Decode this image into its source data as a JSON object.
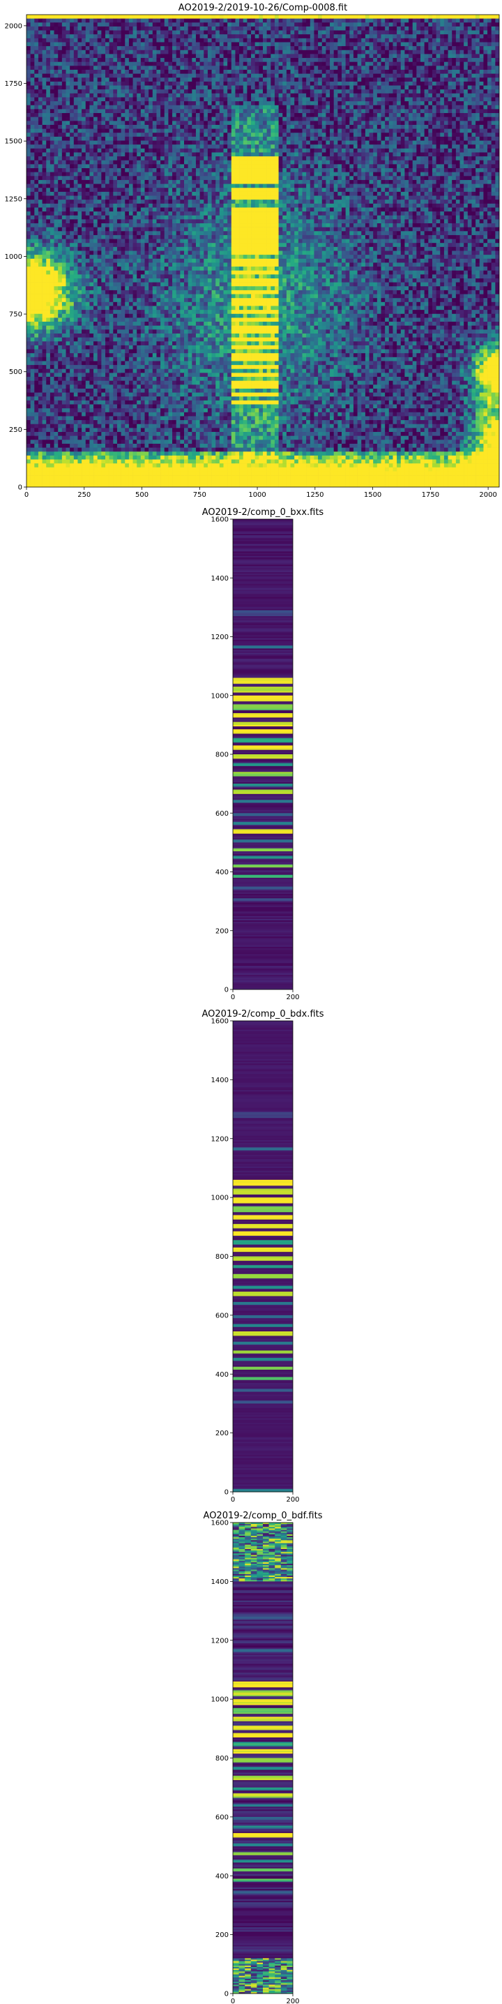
{
  "colors": {
    "viridis_low": "#440154",
    "viridis_dark_blue": "#3b528b",
    "viridis_teal": "#21918c",
    "viridis_green": "#5ec962",
    "viridis_high": "#fde725"
  },
  "chart_data": [
    {
      "type": "heatmap",
      "colormap": "viridis",
      "title": "AO2019-2/2019-10-26/Comp-0008.fit",
      "xlim": [
        0,
        2048
      ],
      "ylim": [
        0,
        2048
      ],
      "xticks": [
        0,
        250,
        500,
        750,
        1000,
        1250,
        1500,
        1750,
        2000
      ],
      "yticks": [
        0,
        250,
        500,
        750,
        1000,
        1250,
        1500,
        1750,
        2000
      ],
      "background_level": 0.18,
      "noise": 0.5,
      "features": [
        {
          "kind": "blob",
          "x": 0,
          "y": 850,
          "rx": 200,
          "ry": 170,
          "amp": 1.5
        },
        {
          "kind": "blob",
          "x": 2048,
          "y": 500,
          "rx": 110,
          "ry": 120,
          "amp": 1.3
        },
        {
          "kind": "blob",
          "x": 2048,
          "y": 160,
          "rx": 120,
          "ry": 220,
          "amp": 1.2
        },
        {
          "kind": "halo",
          "x": 1000,
          "y": 800,
          "rx": 520,
          "ry": 650,
          "amp": 0.35
        },
        {
          "kind": "bottom_glow",
          "y_top": 160,
          "amp": 1.4
        },
        {
          "kind": "top_edge",
          "y": 2035,
          "amp": 1.0
        }
      ],
      "spectrum_column": {
        "x_range": [
          880,
          1100
        ],
        "bright_bands": [
          [
            1320,
            1440
          ],
          [
            1240,
            1290
          ],
          [
            1000,
            1210
          ],
          [
            960,
            985
          ],
          [
            920,
            945
          ],
          [
            870,
            900
          ],
          [
            830,
            855
          ],
          [
            790,
            815
          ],
          [
            750,
            775
          ],
          [
            710,
            735
          ],
          [
            670,
            695
          ],
          [
            630,
            655
          ],
          [
            590,
            615
          ],
          [
            550,
            575
          ],
          [
            510,
            535
          ],
          [
            470,
            495
          ],
          [
            430,
            455
          ],
          [
            390,
            415
          ],
          [
            350,
            375
          ]
        ],
        "faint_range": [
          120,
          1650
        ]
      }
    },
    {
      "type": "heatmap",
      "colormap": "viridis",
      "title": "AO2019-2/comp_0_bxx.fits",
      "xlim": [
        0,
        200
      ],
      "ylim": [
        0,
        1600
      ],
      "xticks": [
        0,
        200
      ],
      "yticks": [
        0,
        200,
        400,
        600,
        800,
        1000,
        1200,
        1400,
        1600
      ],
      "background_level": 0.08,
      "noise": 0.12,
      "bands": [
        {
          "y": [
            1040,
            1060
          ],
          "level": 1.0
        },
        {
          "y": [
            1010,
            1030
          ],
          "level": 0.9
        },
        {
          "y": [
            980,
            1000
          ],
          "level": 1.0
        },
        {
          "y": [
            950,
            970
          ],
          "level": 0.8
        },
        {
          "y": [
            925,
            940
          ],
          "level": 1.0
        },
        {
          "y": [
            895,
            912
          ],
          "level": 0.95
        },
        {
          "y": [
            870,
            885
          ],
          "level": 1.0
        },
        {
          "y": [
            840,
            855
          ],
          "level": 0.6
        },
        {
          "y": [
            815,
            828
          ],
          "level": 1.0
        },
        {
          "y": [
            785,
            800
          ],
          "level": 0.9
        },
        {
          "y": [
            760,
            772
          ],
          "level": 0.55
        },
        {
          "y": [
            725,
            740
          ],
          "level": 0.85
        },
        {
          "y": [
            690,
            702
          ],
          "level": 0.5
        },
        {
          "y": [
            665,
            680
          ],
          "level": 0.9
        },
        {
          "y": [
            635,
            645
          ],
          "level": 0.4
        },
        {
          "y": [
            590,
            600
          ],
          "level": 0.35
        },
        {
          "y": [
            560,
            568
          ],
          "level": 0.45
        },
        {
          "y": [
            530,
            545
          ],
          "level": 0.95
        },
        {
          "y": [
            500,
            510
          ],
          "level": 0.4
        },
        {
          "y": [
            470,
            480
          ],
          "level": 0.85
        },
        {
          "y": [
            445,
            455
          ],
          "level": 0.5
        },
        {
          "y": [
            415,
            427
          ],
          "level": 0.8
        },
        {
          "y": [
            380,
            392
          ],
          "level": 0.7
        },
        {
          "y": [
            340,
            350
          ],
          "level": 0.3
        },
        {
          "y": [
            300,
            308
          ],
          "level": 0.25
        },
        {
          "y": [
            1160,
            1170
          ],
          "level": 0.35
        },
        {
          "y": [
            1270,
            1290
          ],
          "level": 0.2
        }
      ]
    },
    {
      "type": "heatmap",
      "colormap": "viridis",
      "title": "AO2019-2/comp_0_bdx.fits",
      "xlim": [
        0,
        200
      ],
      "ylim": [
        0,
        1600
      ],
      "xticks": [
        0,
        200
      ],
      "yticks": [
        0,
        200,
        400,
        600,
        800,
        1000,
        1200,
        1400,
        1600
      ],
      "background_level": 0.08,
      "noise": 0.06,
      "bands": [
        {
          "y": [
            1040,
            1060
          ],
          "level": 1.0
        },
        {
          "y": [
            1010,
            1030
          ],
          "level": 0.9
        },
        {
          "y": [
            980,
            1000
          ],
          "level": 1.0
        },
        {
          "y": [
            950,
            970
          ],
          "level": 0.8
        },
        {
          "y": [
            925,
            940
          ],
          "level": 1.0
        },
        {
          "y": [
            895,
            912
          ],
          "level": 0.95
        },
        {
          "y": [
            870,
            885
          ],
          "level": 1.0
        },
        {
          "y": [
            840,
            855
          ],
          "level": 0.6
        },
        {
          "y": [
            815,
            828
          ],
          "level": 1.0
        },
        {
          "y": [
            785,
            800
          ],
          "level": 0.9
        },
        {
          "y": [
            760,
            772
          ],
          "level": 0.55
        },
        {
          "y": [
            725,
            740
          ],
          "level": 0.85
        },
        {
          "y": [
            690,
            702
          ],
          "level": 0.5
        },
        {
          "y": [
            665,
            680
          ],
          "level": 0.9
        },
        {
          "y": [
            635,
            645
          ],
          "level": 0.4
        },
        {
          "y": [
            590,
            600
          ],
          "level": 0.35
        },
        {
          "y": [
            560,
            568
          ],
          "level": 0.45
        },
        {
          "y": [
            530,
            545
          ],
          "level": 0.95
        },
        {
          "y": [
            500,
            510
          ],
          "level": 0.4
        },
        {
          "y": [
            470,
            480
          ],
          "level": 0.85
        },
        {
          "y": [
            445,
            455
          ],
          "level": 0.5
        },
        {
          "y": [
            415,
            427
          ],
          "level": 0.8
        },
        {
          "y": [
            380,
            392
          ],
          "level": 0.7
        },
        {
          "y": [
            340,
            350
          ],
          "level": 0.3
        },
        {
          "y": [
            300,
            308
          ],
          "level": 0.25
        },
        {
          "y": [
            1160,
            1170
          ],
          "level": 0.35
        },
        {
          "y": [
            1270,
            1290
          ],
          "level": 0.2
        },
        {
          "y": [
            0,
            12
          ],
          "level": 0.45
        }
      ]
    },
    {
      "type": "heatmap",
      "colormap": "viridis",
      "title": "AO2019-2/comp_0_bdf.fits",
      "xlim": [
        0,
        200
      ],
      "ylim": [
        0,
        1600
      ],
      "xticks": [
        0,
        200
      ],
      "yticks": [
        0,
        200,
        400,
        600,
        800,
        1000,
        1200,
        1400,
        1600
      ],
      "background_level": 0.1,
      "noise": 0.18,
      "noisy_top": [
        1400,
        1600
      ],
      "noisy_bottom": [
        0,
        120
      ],
      "bands": [
        {
          "y": [
            1040,
            1060
          ],
          "level": 1.0
        },
        {
          "y": [
            1010,
            1030
          ],
          "level": 0.9
        },
        {
          "y": [
            980,
            1000
          ],
          "level": 1.0
        },
        {
          "y": [
            950,
            970
          ],
          "level": 0.8
        },
        {
          "y": [
            925,
            940
          ],
          "level": 1.0
        },
        {
          "y": [
            895,
            912
          ],
          "level": 0.95
        },
        {
          "y": [
            870,
            885
          ],
          "level": 1.0
        },
        {
          "y": [
            840,
            855
          ],
          "level": 0.6
        },
        {
          "y": [
            815,
            828
          ],
          "level": 1.0
        },
        {
          "y": [
            785,
            800
          ],
          "level": 0.9
        },
        {
          "y": [
            760,
            772
          ],
          "level": 0.55
        },
        {
          "y": [
            725,
            740
          ],
          "level": 0.85
        },
        {
          "y": [
            690,
            702
          ],
          "level": 0.5
        },
        {
          "y": [
            665,
            680
          ],
          "level": 0.9
        },
        {
          "y": [
            635,
            645
          ],
          "level": 0.4
        },
        {
          "y": [
            590,
            600
          ],
          "level": 0.35
        },
        {
          "y": [
            560,
            568
          ],
          "level": 0.45
        },
        {
          "y": [
            530,
            545
          ],
          "level": 0.95
        },
        {
          "y": [
            500,
            510
          ],
          "level": 0.4
        },
        {
          "y": [
            470,
            480
          ],
          "level": 0.85
        },
        {
          "y": [
            445,
            455
          ],
          "level": 0.5
        },
        {
          "y": [
            415,
            427
          ],
          "level": 0.8
        },
        {
          "y": [
            380,
            392
          ],
          "level": 0.7
        },
        {
          "y": [
            340,
            350
          ],
          "level": 0.3
        },
        {
          "y": [
            300,
            308
          ],
          "level": 0.25
        },
        {
          "y": [
            1160,
            1170
          ],
          "level": 0.35
        },
        {
          "y": [
            1270,
            1290
          ],
          "level": 0.2
        }
      ]
    }
  ]
}
